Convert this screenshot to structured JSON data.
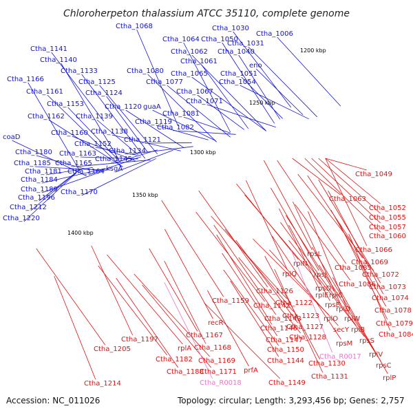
{
  "title": "Chloroherpeton thalassium ATCC 35110, complete genome",
  "footer": {
    "accession": "Accession: NC_011026",
    "summary": "Topology: circular; Length: 3,293,456 bp; Genes: 2,757"
  },
  "scale_ticks": [
    "1200 kbp",
    "1250 kbp",
    "1300 kbp",
    "1350 kbp",
    "1400 kbp"
  ],
  "colors": {
    "forward_strand": "#1010e0",
    "reverse_strand": "#e01010",
    "rna": "#e878c8",
    "backbone": "#808080"
  },
  "labels_blue": [
    "Ctha_1068",
    "Ctha_1064",
    "Ctha_1050",
    "Ctha_1030",
    "Ctha_1006",
    "Ctha_1031",
    "Ctha_1062",
    "Ctha_1040",
    "Ctha_1061",
    "Ctha_1141",
    "Ctha_1140",
    "Ctha_1133",
    "Ctha_1080",
    "Ctha_1065",
    "Ctha_1051",
    "eno",
    "Ctha_1166",
    "Ctha_1125",
    "Ctha_1077",
    "Ctha_1054",
    "Ctha_1161",
    "Ctha_1124",
    "Ctha_1067",
    "Ctha_1153",
    "Ctha_1120",
    "guaA",
    "Ctha_1071",
    "Ctha_1162",
    "Ctha_1139",
    "Ctha_1081",
    "Ctha_1119",
    "Ctha_1082",
    "Ctha_1160",
    "Ctha_1138",
    "coaD",
    "Ctha_1152",
    "Ctha_1121",
    "Ctha_1180",
    "Ctha_1163",
    "Ctha_1134",
    "Ctha_1185",
    "Ctha_1165",
    "Ctha_1145",
    "Ctha_1181",
    "Ctha_1164",
    "ksgA",
    "Ctha_1184",
    "Ctha_1189",
    "Ctha_1170",
    "Ctha_1196",
    "Ctha_1212",
    "Ctha_1220"
  ],
  "labels_red": [
    "Ctha_1049",
    "Ctha_1063",
    "Ctha_1052",
    "Ctha_1055",
    "Ctha_1057",
    "Ctha_1060",
    "Ctha_1066",
    "rpsL",
    "Ctha_1069",
    "rplN",
    "Ctha_1085",
    "Ctha_1072",
    "rplQ",
    "rpsJ",
    "Ctha_1086",
    "Ctha_1073",
    "Ctha_1126",
    "rpsD",
    "rplE",
    "rplC",
    "Ctha_1074",
    "Ctha_1159",
    "Ctha_1142",
    "Ctha_1122",
    "rpsE",
    "rplD",
    "Ctha_1078",
    "Ctha_1143",
    "Ctha_1123",
    "rplO",
    "rplW",
    "Ctha_1079",
    "Ctha_1146",
    "Ctha_1127",
    "secY",
    "rplB",
    "Ctha_1084",
    "recR",
    "Ctha_1147",
    "Ctha_1128",
    "rpsM",
    "rpsS",
    "Ctha_1197",
    "Ctha_1167",
    "Ctha_1150",
    "rplV",
    "Ctha_1205",
    "rplA",
    "Ctha_1168",
    "Ctha_1144",
    "Ctha_1130",
    "rpsC",
    "Ctha_1182",
    "Ctha_1169",
    "prfA",
    "Ctha_1131",
    "rplP",
    "Ctha_1188",
    "Ctha_1171",
    "Ctha_1149",
    "Ctha_1214"
  ],
  "labels_pink": [
    "Ctha_R0017",
    "Ctha_R0018"
  ]
}
